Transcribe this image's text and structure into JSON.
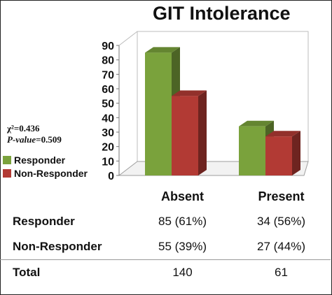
{
  "chart_data": {
    "type": "bar",
    "title": "GIT Intolerance",
    "categories": [
      "Absent",
      "Present"
    ],
    "series": [
      {
        "name": "Responder",
        "values": [
          85,
          34
        ]
      },
      {
        "name": "Non-Responder",
        "values": [
          55,
          27
        ]
      }
    ],
    "ylim": [
      0,
      90
    ],
    "yticks": [
      "0",
      "10",
      "20",
      "30",
      "40",
      "50",
      "60",
      "70",
      "80",
      "90"
    ],
    "xlabel": "",
    "ylabel": "",
    "grid": false,
    "legend_position": "left",
    "style": "3d-bar",
    "colors": {
      "Responder": "#7aa23c",
      "Non-Responder": "#b23a34"
    }
  },
  "stats": {
    "chi_label": "χ²=0.436",
    "p_label": "P-value",
    "p_value": "=0.509"
  },
  "data_table": {
    "columns": [
      "Absent",
      "Present"
    ],
    "rows": [
      {
        "label": "Responder",
        "cells": [
          "85 (61%)",
          "34 (56%)"
        ]
      },
      {
        "label": "Non-Responder",
        "cells": [
          "55 (39%)",
          "27 (44%)"
        ]
      },
      {
        "label": "Total",
        "cells": [
          "140",
          "61"
        ]
      }
    ]
  }
}
